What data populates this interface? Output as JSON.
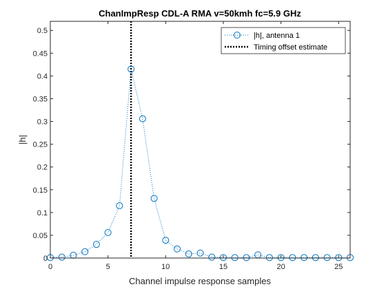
{
  "chart_data": {
    "type": "scatter",
    "title": "ChanImpResp CDL-A RMA v=50kmh fc=5.9 GHz",
    "xlabel": "Channel impulse response samples",
    "ylabel": "|h|",
    "xlim": [
      0,
      26
    ],
    "ylim": [
      0,
      0.52
    ],
    "x_ticks": [
      0,
      5,
      10,
      15,
      20,
      25
    ],
    "y_ticks": [
      0,
      0.05,
      0.1,
      0.15,
      0.2,
      0.25,
      0.3,
      0.35,
      0.4,
      0.45,
      0.5
    ],
    "x_tick_labels": [
      "0",
      "5",
      "10",
      "15",
      "20",
      "25"
    ],
    "y_tick_labels": [
      "0",
      "0.05",
      "0.1",
      "0.15",
      "0.2",
      "0.25",
      "0.3",
      "0.35",
      "0.4",
      "0.45",
      "0.5"
    ],
    "grid": false,
    "legend_position": "top-right",
    "series": [
      {
        "name": "|h|, antenna 1",
        "style": "dotted line with circle markers",
        "color": "#0072BD",
        "x": [
          0,
          1,
          2,
          3,
          4,
          5,
          6,
          7,
          8,
          9,
          10,
          11,
          12,
          13,
          14,
          15,
          16,
          17,
          18,
          19,
          20,
          21,
          22,
          23,
          24,
          25,
          26
        ],
        "y": [
          0.001,
          0.002,
          0.006,
          0.014,
          0.03,
          0.056,
          0.115,
          0.415,
          0.306,
          0.131,
          0.039,
          0.02,
          0.009,
          0.011,
          0.002,
          0.001,
          0.001,
          0.001,
          0.007,
          0.001,
          0.001,
          0.001,
          0.001,
          0.001,
          0.001,
          0.001,
          0.001
        ]
      },
      {
        "name": "Timing offset estimate",
        "style": "thick dotted vertical line",
        "color": "#000000",
        "x_value": 7
      }
    ]
  }
}
